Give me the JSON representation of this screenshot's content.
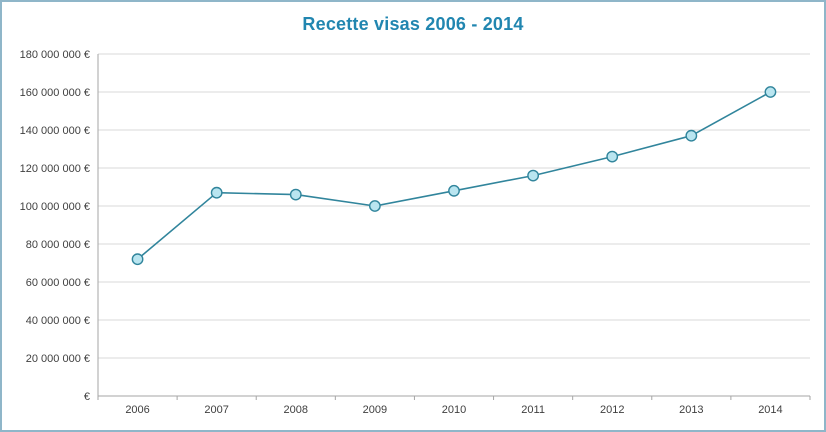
{
  "chart_data": {
    "type": "line",
    "title": "Recette visas 2006 - 2014",
    "categories": [
      "2006",
      "2007",
      "2008",
      "2009",
      "2010",
      "2011",
      "2012",
      "2013",
      "2014"
    ],
    "values": [
      72000000,
      107000000,
      106000000,
      100000000,
      108000000,
      116000000,
      126000000,
      137000000,
      160000000
    ],
    "xlabel": "",
    "ylabel": "",
    "ylim": [
      0,
      180000000
    ],
    "ytick_step": 20000000,
    "yticks": {
      "values": [
        0,
        20000000,
        40000000,
        60000000,
        80000000,
        100000000,
        120000000,
        140000000,
        160000000,
        180000000
      ],
      "labels": [
        "€",
        "20 000 000 €",
        "40 000 000 €",
        "60 000 000 €",
        "80 000 000 €",
        "100 000 000 €",
        "120 000 000 €",
        "140 000 000 €",
        "160 000 000 €",
        "180 000 000 €"
      ]
    },
    "grid": "horizontal",
    "legend": "none",
    "style": {
      "title_color": "#2186b0",
      "line_color": "#31859c",
      "marker_fill": "#b9e5f0",
      "marker_stroke": "#31859c",
      "gridline_color": "#d9d9d9",
      "axis_line_color": "#a6a6a6",
      "axis_text_color": "#404040",
      "frame_border_color": "#8fb6c9"
    }
  }
}
